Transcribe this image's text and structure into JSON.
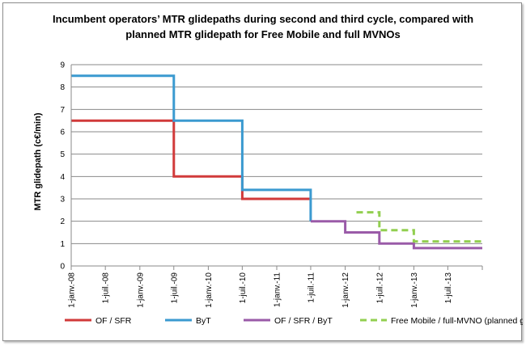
{
  "chart_data": {
    "type": "line",
    "step": true,
    "title": [
      "Incumbent operators’ MTR glidepaths during second and third cycle, compared with",
      "planned MTR glidepath for Free Mobile and full MVNOs"
    ],
    "xlabel": "",
    "ylabel": "MTR glidepath (c€/min)",
    "ylim": [
      0,
      9
    ],
    "yticks": [
      "0",
      "1",
      "2",
      "3",
      "4",
      "5",
      "6",
      "7",
      "8",
      "9"
    ],
    "xlim": [
      "2008-01-01",
      "2014-01-01"
    ],
    "xticks": [
      {
        "label": "1-janv.-08",
        "date": "2008-01-01"
      },
      {
        "label": "1-juil.-08",
        "date": "2008-07-01"
      },
      {
        "label": "1-janv.-09",
        "date": "2009-01-01"
      },
      {
        "label": "1-juil.-09",
        "date": "2009-07-01"
      },
      {
        "label": "1-janv.-10",
        "date": "2010-01-01"
      },
      {
        "label": "1-juil.-10",
        "date": "2010-07-01"
      },
      {
        "label": "1-janv.-11",
        "date": "2011-01-01"
      },
      {
        "label": "1-juil.-11",
        "date": "2011-07-01"
      },
      {
        "label": "1-janv.-12",
        "date": "2012-01-01"
      },
      {
        "label": "1-juil.-12",
        "date": "2012-07-01"
      },
      {
        "label": "1-janv.-13",
        "date": "2013-01-01"
      },
      {
        "label": "1-juil.-13",
        "date": "2013-07-01"
      }
    ],
    "grid": "horizontal",
    "legend_position": "bottom",
    "series": [
      {
        "name": "OF / SFR",
        "color": "#d13a3a",
        "dash": false,
        "points": [
          {
            "x": "2008-01-01",
            "y": 6.5
          },
          {
            "x": "2009-07-01",
            "y": 6.5
          },
          {
            "x": "2009-07-01",
            "y": 4.0
          },
          {
            "x": "2010-07-01",
            "y": 4.0
          },
          {
            "x": "2010-07-01",
            "y": 3.0
          },
          {
            "x": "2011-07-01",
            "y": 3.0
          }
        ]
      },
      {
        "name": "ByT",
        "color": "#3b9ad0",
        "dash": false,
        "points": [
          {
            "x": "2008-01-01",
            "y": 8.5
          },
          {
            "x": "2009-07-01",
            "y": 8.5
          },
          {
            "x": "2009-07-01",
            "y": 6.5
          },
          {
            "x": "2010-07-01",
            "y": 6.5
          },
          {
            "x": "2010-07-01",
            "y": 3.4
          },
          {
            "x": "2011-07-01",
            "y": 3.4
          },
          {
            "x": "2011-07-01",
            "y": 2.0
          }
        ]
      },
      {
        "name": "OF / SFR / ByT",
        "color": "#9a5ba8",
        "dash": false,
        "points": [
          {
            "x": "2011-07-01",
            "y": 2.0
          },
          {
            "x": "2012-01-01",
            "y": 2.0
          },
          {
            "x": "2012-01-01",
            "y": 1.5
          },
          {
            "x": "2012-07-01",
            "y": 1.5
          },
          {
            "x": "2012-07-01",
            "y": 1.0
          },
          {
            "x": "2013-01-01",
            "y": 1.0
          },
          {
            "x": "2013-01-01",
            "y": 0.8
          },
          {
            "x": "2014-01-01",
            "y": 0.8
          }
        ]
      },
      {
        "name": "Free Mobile / full-MVNO (planned glide-path)",
        "color": "#92cf50",
        "dash": true,
        "points": [
          {
            "x": "2012-03-01",
            "y": 2.4
          },
          {
            "x": "2012-07-01",
            "y": 2.4
          },
          {
            "x": "2012-07-01",
            "y": 1.6
          },
          {
            "x": "2013-01-01",
            "y": 1.6
          },
          {
            "x": "2013-01-01",
            "y": 1.1
          },
          {
            "x": "2014-01-01",
            "y": 1.1
          }
        ]
      }
    ]
  }
}
